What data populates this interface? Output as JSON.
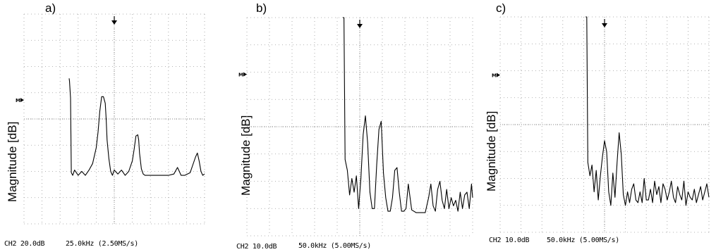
{
  "panels": [
    {
      "letter": "a)",
      "ylabel": "Magnitude [dB]",
      "marker": "M",
      "footer_ch": "CH2 20.0dB",
      "footer_freq": "25.0kHz (2.50MS/s)"
    },
    {
      "letter": "b)",
      "ylabel": "Magnitude [dB]",
      "marker": "M",
      "footer_ch": "CH2 10.0dB",
      "footer_freq": "50.0kHz (5.00MS/s)"
    },
    {
      "letter": "c)",
      "ylabel": "Magnitude [dB]",
      "marker": "M",
      "footer_ch": "CH2 10.0dB",
      "footer_freq": "50.0kHz (5.00MS/s)"
    }
  ],
  "chart_data": [
    {
      "type": "line",
      "title": "a)",
      "ylabel": "Magnitude [dB]",
      "grid": true,
      "divisions": {
        "x": 10,
        "y": 8
      },
      "xlim": [
        0,
        10
      ],
      "ylim": [
        0,
        8
      ],
      "series": [
        {
          "x": [
            0,
            1.0,
            2.0,
            2.5,
            2.52,
            2.58,
            2.62,
            2.7,
            2.8,
            3.0,
            3.2,
            3.4,
            3.6,
            3.8,
            4.0,
            4.1,
            4.2,
            4.3,
            4.4,
            4.5,
            4.55,
            4.6,
            4.7,
            4.8,
            4.9,
            5.0,
            5.2,
            5.4,
            5.6,
            5.8,
            6.0,
            6.1,
            6.2,
            6.3,
            6.35,
            6.4,
            6.5,
            6.6,
            6.7,
            7.0,
            7.4,
            7.8,
            8.0,
            8.3,
            8.5,
            8.6,
            8.7,
            8.9,
            9.2,
            9.5,
            9.6,
            9.7,
            9.8,
            9.9,
            10
          ],
          "y": [
            null,
            null,
            null,
            5.55,
            5.45,
            4.8,
            1.95,
            1.85,
            2.05,
            1.85,
            2.0,
            1.85,
            2.05,
            2.3,
            2.9,
            3.5,
            4.3,
            4.85,
            4.85,
            4.6,
            4.0,
            3.2,
            2.5,
            2.0,
            1.85,
            2.05,
            1.9,
            2.05,
            1.85,
            2.0,
            2.4,
            2.85,
            3.35,
            3.4,
            3.2,
            2.7,
            2.1,
            1.9,
            1.85,
            1.85,
            1.85,
            1.85,
            1.85,
            1.9,
            2.15,
            2.0,
            1.85,
            1.85,
            1.95,
            2.55,
            2.7,
            2.4,
            2.0,
            1.85,
            1.9
          ]
        }
      ]
    },
    {
      "type": "line",
      "title": "b)",
      "ylabel": "Magnitude [dB]",
      "grid": true,
      "divisions": {
        "x": 10,
        "y": 8
      },
      "xlim": [
        0,
        10
      ],
      "ylim": [
        0,
        8
      ],
      "series": [
        {
          "x": [
            0,
            4.25,
            4.3,
            4.35,
            4.45,
            4.55,
            4.65,
            4.75,
            4.85,
            4.95,
            5.05,
            5.15,
            5.25,
            5.35,
            5.45,
            5.55,
            5.65,
            5.75,
            5.85,
            5.95,
            6.05,
            6.15,
            6.25,
            6.35,
            6.45,
            6.55,
            6.65,
            6.75,
            6.85,
            6.95,
            7.05,
            7.15,
            7.3,
            7.5,
            7.7,
            7.9,
            8.05,
            8.15,
            8.25,
            8.35,
            8.45,
            8.55,
            8.65,
            8.75,
            8.85,
            8.95,
            9.05,
            9.15,
            9.25,
            9.35,
            9.45,
            9.55,
            9.65,
            9.75,
            9.85,
            9.95,
            10
          ],
          "y": [
            null,
            8.0,
            8.0,
            2.8,
            2.4,
            1.5,
            2.1,
            1.6,
            2.2,
            1.0,
            2.1,
            3.7,
            4.4,
            3.4,
            1.6,
            1.0,
            1.0,
            2.6,
            3.9,
            4.2,
            2.3,
            1.4,
            0.9,
            0.9,
            1.4,
            2.4,
            2.5,
            1.6,
            0.9,
            0.9,
            1.0,
            1.9,
            0.95,
            0.85,
            0.85,
            0.85,
            1.4,
            1.9,
            1.1,
            0.9,
            1.7,
            2.0,
            1.3,
            1.0,
            1.7,
            1.0,
            1.4,
            1.1,
            1.3,
            0.9,
            1.6,
            1.0,
            1.5,
            1.6,
            1.0,
            1.9,
            1.4
          ]
        }
      ]
    },
    {
      "type": "line",
      "title": "c)",
      "ylabel": "Magnitude [dB]",
      "grid": true,
      "divisions": {
        "x": 10,
        "y": 8
      },
      "xlim": [
        0,
        10
      ],
      "ylim": [
        0,
        8
      ],
      "series": [
        {
          "x": [
            0,
            4.1,
            4.15,
            4.2,
            4.3,
            4.4,
            4.5,
            4.6,
            4.7,
            4.8,
            4.9,
            5.0,
            5.1,
            5.2,
            5.3,
            5.4,
            5.5,
            5.6,
            5.7,
            5.8,
            5.9,
            6.0,
            6.1,
            6.2,
            6.3,
            6.4,
            6.5,
            6.6,
            6.7,
            6.8,
            6.9,
            7.0,
            7.1,
            7.2,
            7.3,
            7.4,
            7.5,
            7.6,
            7.7,
            7.8,
            7.9,
            8.0,
            8.1,
            8.2,
            8.3,
            8.4,
            8.5,
            8.6,
            8.7,
            8.8,
            8.9,
            9.0,
            9.1,
            9.2,
            9.3,
            9.4,
            9.5,
            9.6,
            9.7,
            9.8,
            9.9,
            10
          ],
          "y": [
            null,
            8.0,
            8.0,
            2.6,
            2.1,
            2.5,
            1.5,
            2.3,
            1.2,
            2.1,
            2.8,
            3.4,
            3.0,
            1.5,
            1.0,
            2.2,
            1.3,
            2.6,
            3.7,
            2.9,
            1.4,
            1.0,
            1.5,
            1.1,
            1.6,
            1.8,
            1.2,
            1.1,
            1.5,
            1.1,
            2.0,
            1.2,
            1.2,
            1.6,
            1.1,
            1.9,
            1.4,
            1.7,
            1.1,
            1.8,
            1.6,
            1.2,
            1.5,
            1.9,
            1.3,
            1.1,
            1.7,
            1.4,
            1.2,
            1.9,
            1.0,
            1.5,
            1.3,
            1.2,
            1.6,
            1.1,
            1.4,
            1.7,
            1.2,
            1.5,
            1.8,
            1.3
          ]
        }
      ]
    }
  ]
}
